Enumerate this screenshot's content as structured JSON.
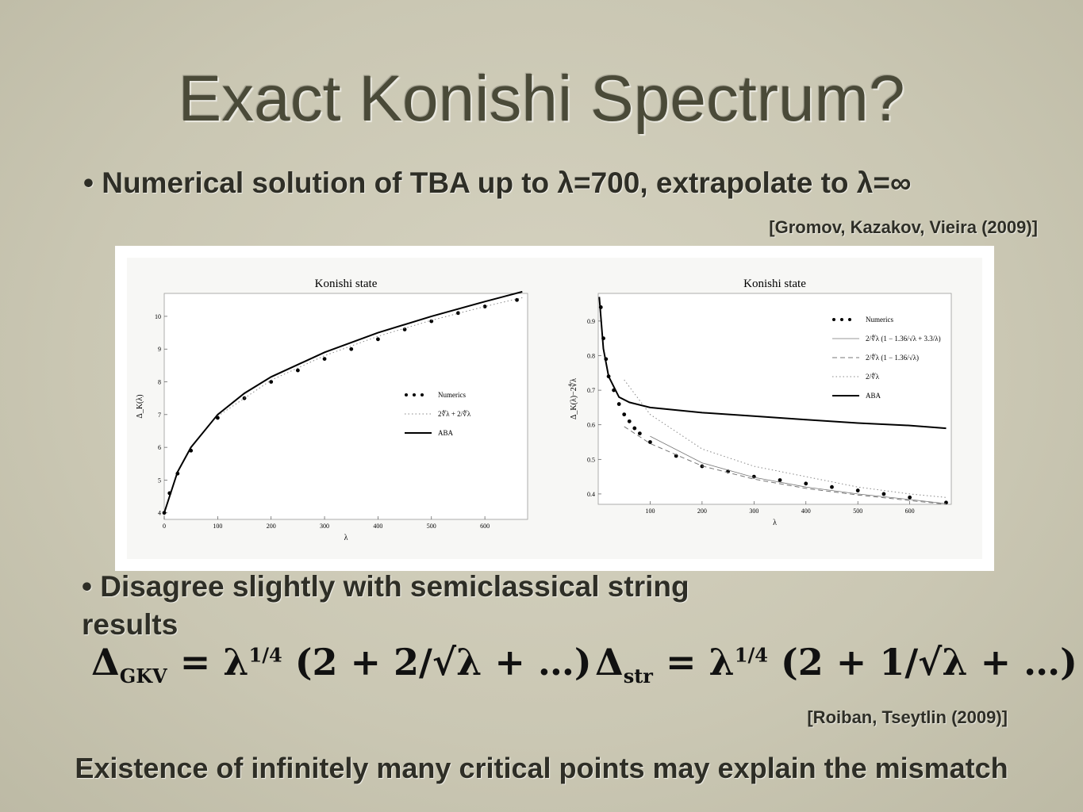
{
  "slide": {
    "title": "Exact Konishi Spectrum?",
    "bullets": [
      "Numerical solution of TBA up to λ=700, extrapolate to λ=∞",
      "Disagree slightly with semiclassical string results"
    ],
    "citations": [
      "[Gromov, Kazakov, Vieira (2009)]",
      "[Roiban, Tseytlin (2009)]"
    ],
    "formulas": [
      {
        "symbol": "Δ",
        "subscript": "GKV",
        "equals": "= λ",
        "exponent": "1/4",
        "expression": "(2 + 2/√λ + …)"
      },
      {
        "symbol": "Δ",
        "subscript": "str",
        "equals": "= λ",
        "exponent": "1/4",
        "expression": "(2 + 1/√λ + …)"
      }
    ],
    "conclusion": "Existence of infinitely many critical points may explain the mismatch"
  },
  "chart_data": [
    {
      "type": "line",
      "title": "Konishi state",
      "x_label": "λ",
      "y_label": "Δ_K(λ)",
      "xlim": [
        0,
        680
      ],
      "ylim": [
        3.8,
        10.7
      ],
      "xticks": [
        0,
        100,
        200,
        300,
        400,
        500,
        600
      ],
      "yticks": [
        4,
        5,
        6,
        7,
        8,
        9,
        10
      ],
      "legend": "lower right",
      "series": [
        {
          "name": "Numerics",
          "style": "points",
          "color": "#000000",
          "x": [
            0,
            10,
            25,
            50,
            100,
            150,
            200,
            250,
            300,
            350,
            400,
            450,
            500,
            550,
            600,
            660
          ],
          "values": [
            4.0,
            4.6,
            5.2,
            5.9,
            6.9,
            7.5,
            8.0,
            8.35,
            8.7,
            9.0,
            9.3,
            9.6,
            9.85,
            10.1,
            10.3,
            10.5
          ]
        },
        {
          "name": "2∜λ + 2/∜λ",
          "style": "dotted",
          "color": "#888888",
          "x": [
            100,
            200,
            300,
            400,
            500,
            600,
            670
          ],
          "values": [
            6.95,
            8.05,
            8.8,
            9.39,
            9.88,
            10.3,
            10.57
          ]
        },
        {
          "name": "ABA",
          "style": "solid",
          "color": "#000000",
          "x": [
            0,
            25,
            50,
            100,
            150,
            200,
            300,
            400,
            500,
            600,
            670
          ],
          "values": [
            4.0,
            5.25,
            6.0,
            7.0,
            7.65,
            8.15,
            8.9,
            9.5,
            10.0,
            10.45,
            10.75
          ]
        }
      ]
    },
    {
      "type": "line",
      "title": "Konishi state",
      "x_label": "λ",
      "y_label": "Δ_K(λ)−2∜λ",
      "xlim": [
        0,
        680
      ],
      "ylim": [
        0.37,
        0.98
      ],
      "xticks": [
        100,
        200,
        300,
        400,
        500,
        600
      ],
      "yticks": [
        0.4,
        0.5,
        0.6,
        0.7,
        0.8,
        0.9
      ],
      "legend": "upper right",
      "series": [
        {
          "name": "Numerics",
          "style": "points",
          "color": "#000000",
          "x": [
            5,
            10,
            15,
            20,
            30,
            40,
            50,
            60,
            70,
            80,
            100,
            150,
            200,
            250,
            300,
            350,
            400,
            450,
            500,
            550,
            600,
            670
          ],
          "values": [
            0.94,
            0.85,
            0.79,
            0.74,
            0.7,
            0.66,
            0.63,
            0.61,
            0.59,
            0.575,
            0.55,
            0.51,
            0.48,
            0.465,
            0.45,
            0.44,
            0.43,
            0.42,
            0.41,
            0.4,
            0.39,
            0.375
          ]
        },
        {
          "name": "2/∜λ (1 − 1.36/√λ + 3.3/λ)",
          "style": "thin",
          "color": "#777777",
          "x": [
            100,
            200,
            300,
            400,
            500,
            600,
            670
          ],
          "values": [
            0.567,
            0.49,
            0.448,
            0.42,
            0.4,
            0.384,
            0.372
          ]
        },
        {
          "name": "2/∜λ (1 − 1.36/√λ)",
          "style": "dashed",
          "color": "#777777",
          "x": [
            50,
            100,
            200,
            300,
            400,
            500,
            600,
            670
          ],
          "values": [
            0.595,
            0.546,
            0.481,
            0.443,
            0.416,
            0.397,
            0.381,
            0.37
          ]
        },
        {
          "name": "2/∜λ",
          "style": "dotted",
          "color": "#888888",
          "x": [
            50,
            100,
            200,
            300,
            400,
            500,
            600,
            670
          ],
          "values": [
            0.73,
            0.63,
            0.53,
            0.48,
            0.45,
            0.42,
            0.4,
            0.39
          ]
        },
        {
          "name": "ABA",
          "style": "solid",
          "color": "#000000",
          "x": [
            2,
            10,
            20,
            40,
            60,
            100,
            200,
            300,
            400,
            500,
            600,
            670
          ],
          "values": [
            0.97,
            0.82,
            0.74,
            0.68,
            0.665,
            0.65,
            0.635,
            0.625,
            0.615,
            0.605,
            0.598,
            0.59
          ]
        }
      ]
    }
  ]
}
